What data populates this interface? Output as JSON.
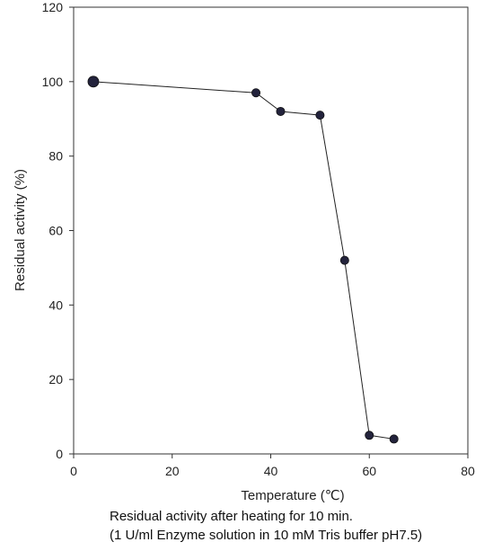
{
  "chart_data": {
    "type": "line",
    "xlabel": "Temperature (℃)",
    "ylabel": "Residual activity (%)",
    "xlim": [
      0,
      80
    ],
    "ylim": [
      0,
      120
    ],
    "xticks": [
      "0",
      "20",
      "40",
      "60",
      "80"
    ],
    "yticks": [
      "0",
      "20",
      "40",
      "60",
      "80",
      "100",
      "120"
    ],
    "grid": false,
    "legend": "none",
    "series": [
      {
        "x": [
          4,
          37,
          42,
          50,
          55,
          60,
          65
        ],
        "y": [
          100,
          97,
          92,
          91,
          52,
          5,
          4
        ],
        "color": "#23233c"
      }
    ]
  },
  "caption": {
    "line1": "Residual activity after heating for  10 min.",
    "line2": "(1 U/ml Enzyme solution in 10 mM Tris buffer pH7.5)"
  }
}
